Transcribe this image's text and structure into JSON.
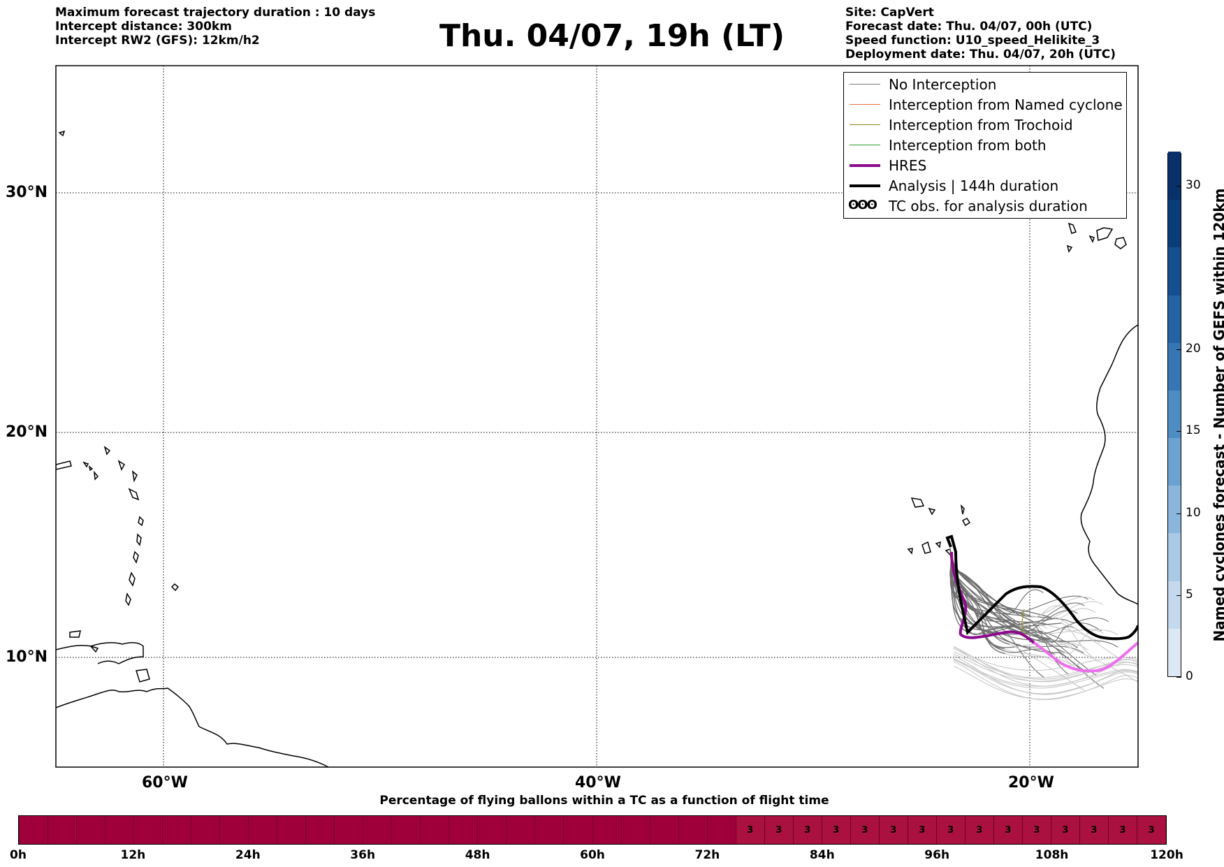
{
  "header": {
    "left_lines": [
      "Maximum forecast trajectory duration : 10 days",
      "Intercept distance: 300km",
      "Intercept RW2 (GFS):  12km/h2"
    ],
    "title": "Thu. 04/07, 19h (LT)",
    "right_lines": [
      "Site: CapVert",
      "Forecast date: Thu. 04/07, 00h (UTC)",
      "Speed function: U10_speed_Helikite_3",
      "Deployment date: Thu. 04/07, 20h (UTC)"
    ]
  },
  "map": {
    "lat_labels": [
      "30°N",
      "20°N",
      "10°N"
    ],
    "lon_labels": [
      "60°W",
      "40°W",
      "20°W"
    ],
    "grid": "dotted",
    "colors": {
      "no_interception": "#6e6e6e",
      "no_interception_late": "#c8c8c8",
      "hres": "#8c0a8c",
      "hres_late": "#ee6eee",
      "analysis": "#000000",
      "trochoid": "#9a9a2a"
    }
  },
  "legend": {
    "items": [
      {
        "label": "No Interception",
        "color": "#7a7a7a",
        "width": 1.5
      },
      {
        "label": "Interception from Named cyclone",
        "color": "#f07040",
        "width": 1.5
      },
      {
        "label": "Interception from Trochoid",
        "color": "#8a8a20",
        "width": 1.5
      },
      {
        "label": "Interception from both",
        "color": "#2a9a2a",
        "width": 1.5
      },
      {
        "label": "HRES",
        "color": "#8c0a8c",
        "width": 4
      },
      {
        "label": "Analysis | 144h duration",
        "color": "#000000",
        "width": 4
      },
      {
        "label": "TC obs. for analysis duration",
        "symbol": "ʘʘʘ"
      }
    ]
  },
  "colorbar": {
    "label": "Named cyclones forecast - Number of GEFS within 120km",
    "ticks": [
      "0",
      "5",
      "10",
      "15",
      "20",
      "30"
    ],
    "min": 0,
    "max": 32,
    "colors": [
      "#dde8f5",
      "#c5d9ee",
      "#a9c9e4",
      "#8ab6db",
      "#6ba2d1",
      "#4e8cc4",
      "#3676b5",
      "#2362a3",
      "#144f90",
      "#0b3c7a",
      "#08306b"
    ]
  },
  "bottom": {
    "title": "Percentage of flying ballons within a TC as a function of flight time",
    "time_labels": [
      "0h",
      "12h",
      "24h",
      "36h",
      "48h",
      "60h",
      "72h",
      "84h",
      "96h",
      "108h",
      "120h"
    ],
    "bar_color": "#a0003a",
    "value_color": "#aa1040",
    "cell_values": [
      "",
      "",
      "",
      "",
      "",
      "",
      "",
      "",
      "",
      "",
      "",
      "",
      "",
      "",
      "",
      "",
      "",
      "",
      "",
      "",
      "",
      "",
      "",
      "",
      "",
      "3",
      "3",
      "3",
      "3",
      "3",
      "3",
      "3",
      "3",
      "3",
      "3",
      "3",
      "3",
      "3",
      "3",
      "3"
    ]
  }
}
